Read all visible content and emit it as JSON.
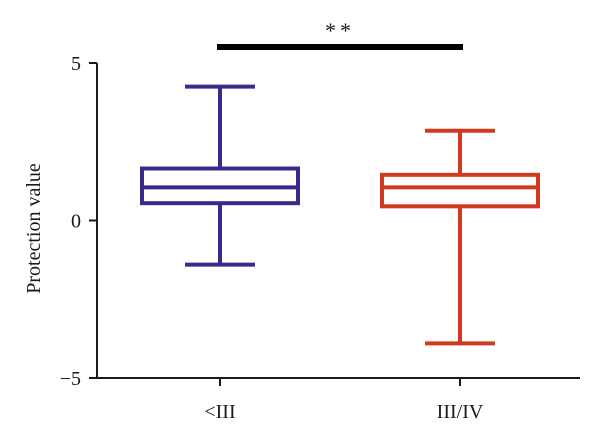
{
  "chart_data": {
    "type": "box",
    "ylabel": "Protection value",
    "ylim": [
      -5,
      5
    ],
    "yticks": [
      5,
      0,
      -5
    ],
    "ytick_labels": [
      "5",
      "0",
      "−5"
    ],
    "grid": false,
    "categories": [
      "<III",
      "III/IV"
    ],
    "boxes": [
      {
        "category": "<III",
        "min": -1.4,
        "q1": 0.55,
        "median": 1.05,
        "q3": 1.65,
        "max": 4.25,
        "color": "#3a2a8c"
      },
      {
        "category": "III/IV",
        "min": -3.9,
        "q1": 0.45,
        "median": 1.05,
        "q3": 1.45,
        "max": 2.85,
        "color": "#d03a1e"
      }
    ],
    "significance": {
      "text": "**",
      "from": 0,
      "to": 1,
      "y": 5.5
    }
  }
}
